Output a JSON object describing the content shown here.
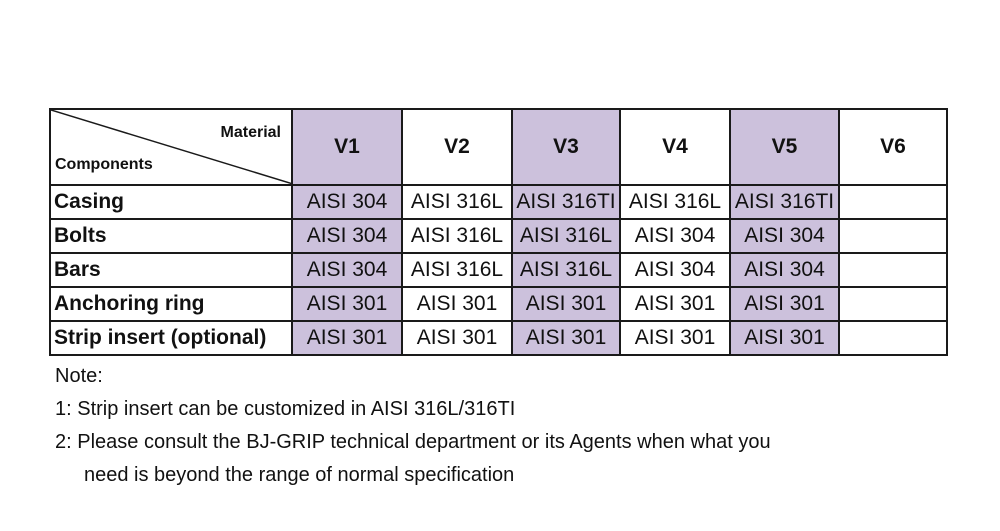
{
  "table": {
    "corner": {
      "top_right": "Material",
      "bottom_left": "Components"
    },
    "versions": [
      {
        "label": "V1",
        "shaded": true
      },
      {
        "label": "V2",
        "shaded": false
      },
      {
        "label": "V3",
        "shaded": true
      },
      {
        "label": "V4",
        "shaded": false
      },
      {
        "label": "V5",
        "shaded": true
      },
      {
        "label": "V6",
        "shaded": false
      }
    ],
    "rows": [
      {
        "component": "Casing",
        "cells": [
          "AISI 304",
          "AISI 316L",
          "AISI 316TI",
          "AISI 316L",
          "AISI 316TI",
          ""
        ]
      },
      {
        "component": "Bolts",
        "cells": [
          "AISI 304",
          "AISI 316L",
          "AISI 316L",
          "AISI 304",
          "AISI 304",
          ""
        ]
      },
      {
        "component": "Bars",
        "cells": [
          "AISI 304",
          "AISI 316L",
          "AISI 316L",
          "AISI 304",
          "AISI 304",
          ""
        ]
      },
      {
        "component": "Anchoring ring",
        "cells": [
          "AISI 301",
          "AISI 301",
          "AISI 301",
          "AISI 301",
          "AISI 301",
          ""
        ]
      },
      {
        "component": "Strip insert (optional)",
        "cells": [
          "AISI 301",
          "AISI 301",
          "AISI 301",
          "AISI 301",
          "AISI 301",
          ""
        ]
      }
    ],
    "shade_color": "#ccc1dc"
  },
  "notes": {
    "heading": "Note:",
    "line1": "1: Strip insert can be customized in AISI 316L/316TI",
    "line2": "2: Please consult the BJ-GRIP technical department or its Agents when what you",
    "line2_cont": "need is  beyond the range of normal specification"
  }
}
